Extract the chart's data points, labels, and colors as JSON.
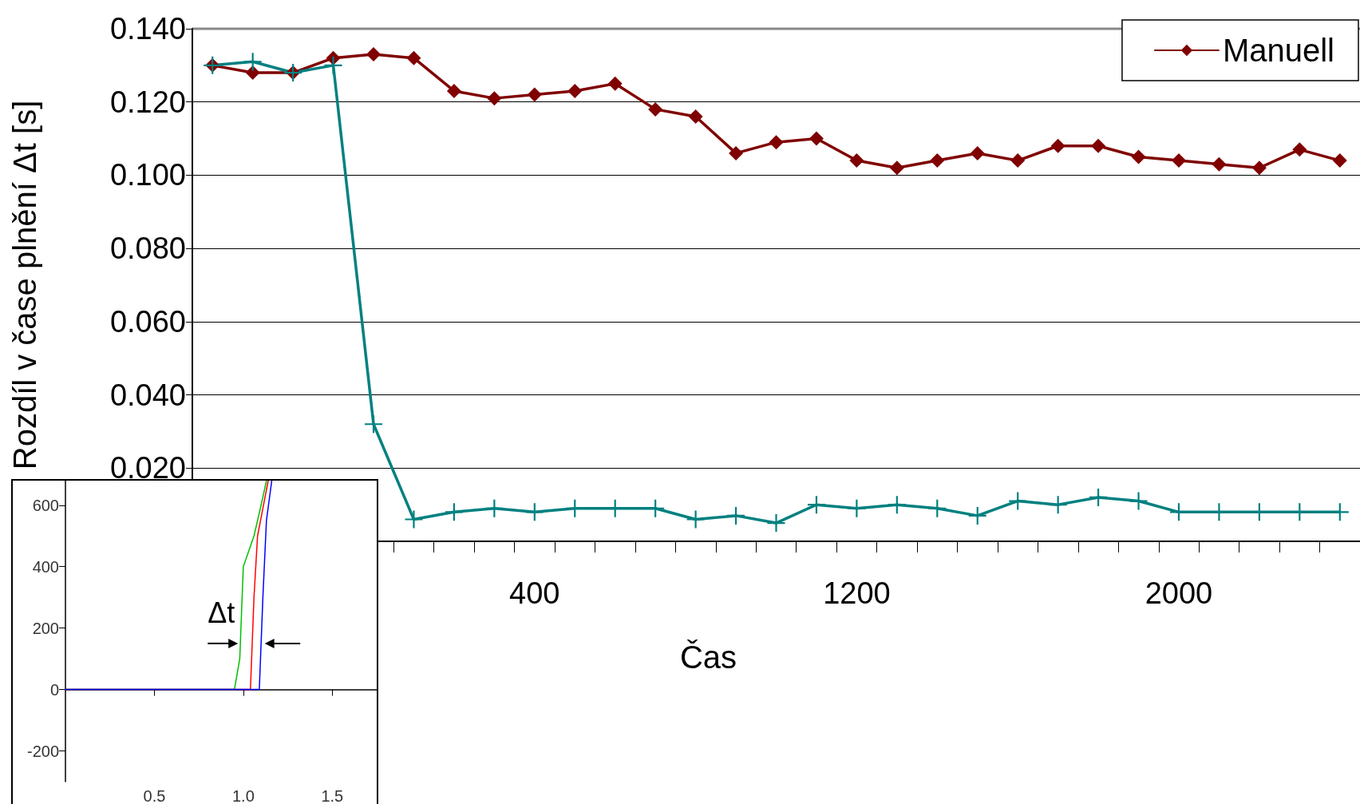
{
  "chart_data": [
    {
      "type": "line",
      "xlabel": "Čas",
      "ylabel": "Rozdíl v čase plnění Δt [s]",
      "categories": [
        null,
        null,
        null,
        null,
        null,
        null,
        null,
        null,
        "400",
        null,
        null,
        null,
        null,
        null,
        null,
        null,
        "1200",
        null,
        null,
        null,
        null,
        null,
        null,
        null,
        "2000",
        null,
        null,
        null,
        null
      ],
      "series": [
        {
          "name": "Manuell",
          "color": "#800000",
          "marker": "diamond",
          "values": [
            0.13,
            0.128,
            0.128,
            0.132,
            0.133,
            0.132,
            0.123,
            0.121,
            0.122,
            0.123,
            0.125,
            0.118,
            0.116,
            0.106,
            0.109,
            0.11,
            0.104,
            0.102,
            0.104,
            0.106,
            0.104,
            0.108,
            0.108,
            0.105,
            0.104,
            0.103,
            0.102,
            0.107,
            0.104
          ]
        },
        {
          "color": "#008080",
          "marker": "cross",
          "values": [
            0.13,
            0.131,
            0.128,
            0.13,
            0.032,
            0.006,
            0.008,
            0.009,
            0.008,
            0.009,
            0.009,
            0.009,
            0.006,
            0.007,
            0.005,
            0.01,
            0.009,
            0.01,
            0.009,
            0.007,
            0.011,
            0.01,
            0.012,
            0.011,
            0.008,
            0.008,
            0.008,
            0.008,
            0.008
          ]
        }
      ],
      "ylim": [
        0,
        0.14
      ],
      "yticks": [
        {
          "value": 0,
          "label": null
        },
        {
          "value": 0.02,
          "label": "0.020"
        },
        {
          "value": 0.04,
          "label": "0.040"
        },
        {
          "value": 0.06,
          "label": "0.060"
        },
        {
          "value": 0.08,
          "label": "0.080"
        },
        {
          "value": 0.1,
          "label": "0.100"
        },
        {
          "value": 0.12,
          "label": "0.120"
        },
        {
          "value": 0.14,
          "label": "0.140"
        }
      ],
      "grid": "y",
      "legend": "top right"
    },
    {
      "type": "line",
      "annotations": [
        "Δt"
      ],
      "series": [
        {
          "color": "#00c000",
          "x": [
            0,
            0.95,
            0.98,
            1.0,
            1.06,
            1.1,
            1.13
          ],
          "values": [
            0,
            0,
            100,
            400,
            500,
            600,
            680
          ]
        },
        {
          "color": "#ff0000",
          "x": [
            0,
            1.04,
            1.06,
            1.08,
            1.12,
            1.14
          ],
          "values": [
            0,
            0,
            300,
            500,
            620,
            680
          ]
        },
        {
          "color": "#0000ff",
          "x": [
            0,
            1.09,
            1.11,
            1.13,
            1.16
          ],
          "values": [
            0,
            0,
            300,
            550,
            680
          ]
        }
      ],
      "xlim": [
        0,
        1.75
      ],
      "xticks": [
        0.5,
        {
          "value": 1,
          "label": "1.0"
        },
        1.5
      ],
      "ylim": [
        -300,
        680
      ],
      "yticks": [
        -200,
        0,
        200,
        400,
        600
      ]
    }
  ]
}
